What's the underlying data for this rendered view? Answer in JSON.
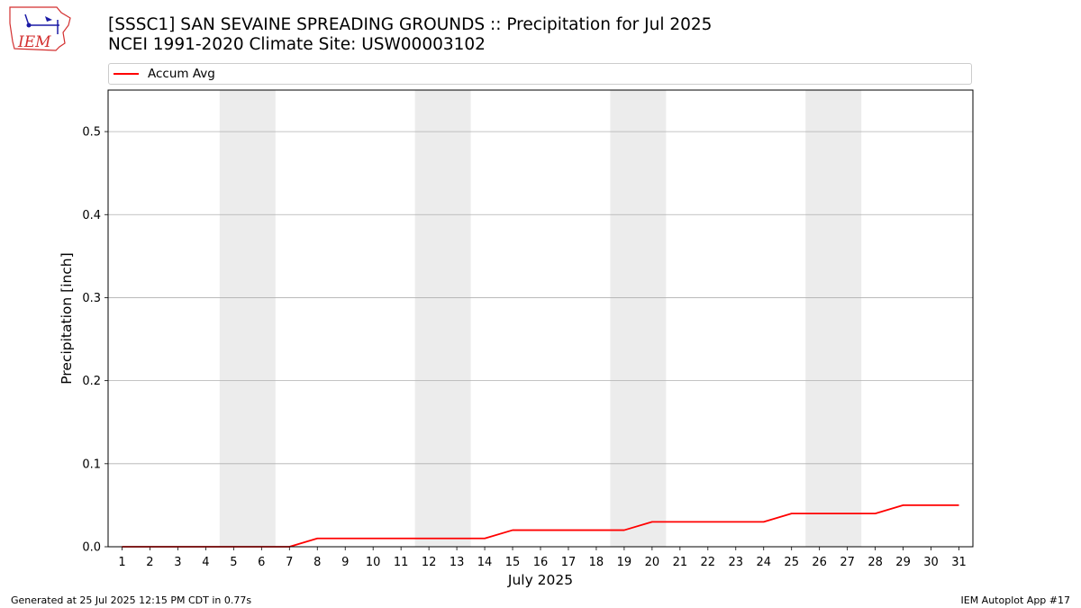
{
  "logo": {
    "text": "IEM",
    "accent_color": "#d32f2f",
    "icon_color": "#1a1aa6"
  },
  "title_line1": "[SSSC1] SAN SEVAINE SPREADING GROUNDS :: Precipitation for Jul 2025",
  "title_line2": "NCEI 1991-2020 Climate Site: USW00003102",
  "footer": {
    "generated": "Generated at 25 Jul 2025 12:15 PM CDT in 0.77s",
    "app": "IEM Autoplot App #17"
  },
  "chart_data": {
    "type": "line",
    "xlabel": "July 2025",
    "ylabel": "Precipitation [inch]",
    "x": [
      1,
      2,
      3,
      4,
      5,
      6,
      7,
      8,
      9,
      10,
      11,
      12,
      13,
      14,
      15,
      16,
      17,
      18,
      19,
      20,
      21,
      22,
      23,
      24,
      25,
      26,
      27,
      28,
      29,
      30,
      31
    ],
    "x_tick_labels": [
      "1",
      "2",
      "3",
      "4",
      "5",
      "6",
      "7",
      "8",
      "9",
      "10",
      "11",
      "12",
      "13",
      "14",
      "15",
      "16",
      "17",
      "18",
      "19",
      "20",
      "21",
      "22",
      "23",
      "24",
      "25",
      "26",
      "27",
      "28",
      "29",
      "30",
      "31"
    ],
    "xlim": [
      0.5,
      31.5
    ],
    "ylim": [
      0,
      0.55
    ],
    "y_ticks": [
      0.0,
      0.1,
      0.2,
      0.3,
      0.4,
      0.5
    ],
    "y_tick_labels": [
      "0.0",
      "0.1",
      "0.2",
      "0.3",
      "0.4",
      "0.5"
    ],
    "grid": "horizontal",
    "legend_position": "top, above plot",
    "weekend_shading": [
      [
        5,
        6
      ],
      [
        12,
        13
      ],
      [
        19,
        20
      ],
      [
        26,
        27
      ]
    ],
    "shading_color": "#ececec",
    "series": [
      {
        "name": "Accum Avg",
        "color": "#ff0000",
        "values": [
          0,
          0,
          0,
          0,
          0,
          0,
          0,
          0.01,
          0.01,
          0.01,
          0.01,
          0.01,
          0.01,
          0.01,
          0.02,
          0.02,
          0.02,
          0.02,
          0.02,
          0.03,
          0.03,
          0.03,
          0.03,
          0.03,
          0.04,
          0.04,
          0.04,
          0.04,
          0.05,
          0.05,
          0.05
        ]
      }
    ]
  }
}
